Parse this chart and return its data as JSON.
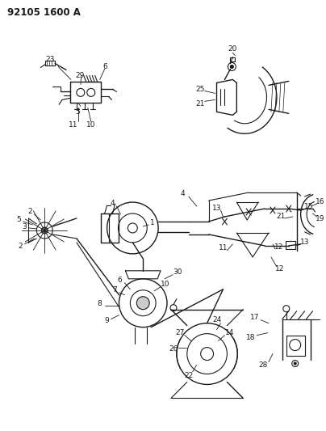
{
  "title": "92105 1600 A",
  "bg_color": "#ffffff",
  "fg_color": "#1a1a1a",
  "fig_width": 4.04,
  "fig_height": 5.33,
  "dpi": 100,
  "title_fontsize": 8.5,
  "label_fontsize": 6.5
}
